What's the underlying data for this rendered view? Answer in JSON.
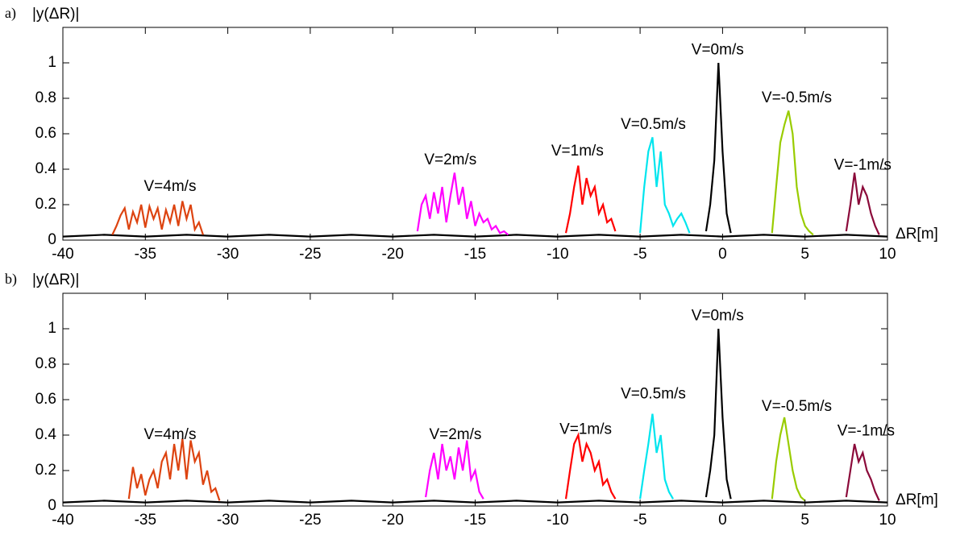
{
  "chart_data": [
    {
      "type": "line",
      "panel_label": "a)",
      "ylabel": "|y(ΔR)|",
      "xlabel": "ΔR[m]",
      "xlim": [
        -40,
        10
      ],
      "ylim": [
        0,
        1.2
      ],
      "xticks": [
        -40,
        -35,
        -30,
        -25,
        -20,
        -15,
        -10,
        -5,
        0,
        5,
        10
      ],
      "yticks": [
        0,
        0.2,
        0.4,
        0.6,
        0.8,
        1
      ],
      "series": [
        {
          "color": "#000000",
          "x": [
            -40,
            -37.5,
            -35,
            -32.5,
            -30,
            -27.5,
            -25,
            -22.5,
            -20,
            -17.5,
            -15,
            -12.5,
            -10,
            -7.5,
            -5,
            -2.5,
            0,
            2.5,
            5,
            7.5,
            10
          ],
          "values": [
            0.02,
            0.03,
            0.02,
            0.03,
            0.02,
            0.03,
            0.02,
            0.03,
            0.02,
            0.03,
            0.02,
            0.03,
            0.02,
            0.03,
            0.02,
            0.03,
            0.02,
            0.03,
            0.02,
            0.03,
            0.02
          ]
        },
        {
          "color": "#dd4411",
          "x": [
            -37,
            -36.75,
            -36.5,
            -36.25,
            -36,
            -35.75,
            -35.5,
            -35.25,
            -35,
            -34.75,
            -34.5,
            -34.25,
            -34,
            -33.75,
            -33.5,
            -33.25,
            -33,
            -32.75,
            -32.5,
            -32.25,
            -32,
            -31.75,
            -31.5
          ],
          "values": [
            0.03,
            0.08,
            0.14,
            0.18,
            0.06,
            0.16,
            0.1,
            0.2,
            0.07,
            0.19,
            0.12,
            0.18,
            0.06,
            0.17,
            0.1,
            0.2,
            0.08,
            0.22,
            0.12,
            0.2,
            0.06,
            0.1,
            0.03
          ]
        },
        {
          "color": "#ff00ff",
          "x": [
            -18.5,
            -18.25,
            -18,
            -17.75,
            -17.5,
            -17.25,
            -17,
            -16.75,
            -16.5,
            -16.25,
            -16,
            -15.75,
            -15.5,
            -15.25,
            -15,
            -14.75,
            -14.5,
            -14.25,
            -14,
            -13.75,
            -13.5,
            -13.25,
            -13
          ],
          "values": [
            0.05,
            0.2,
            0.25,
            0.12,
            0.27,
            0.15,
            0.3,
            0.1,
            0.25,
            0.38,
            0.2,
            0.3,
            0.12,
            0.22,
            0.08,
            0.15,
            0.1,
            0.12,
            0.06,
            0.08,
            0.04,
            0.05,
            0.03
          ]
        },
        {
          "color": "#ff0000",
          "x": [
            -9.5,
            -9.25,
            -9,
            -8.75,
            -8.5,
            -8.25,
            -8,
            -7.75,
            -7.5,
            -7.25,
            -7,
            -6.75,
            -6.5
          ],
          "values": [
            0.04,
            0.15,
            0.3,
            0.42,
            0.2,
            0.35,
            0.25,
            0.3,
            0.15,
            0.2,
            0.1,
            0.12,
            0.05
          ]
        },
        {
          "color": "#00e5ee",
          "x": [
            -5,
            -4.75,
            -4.5,
            -4.25,
            -4,
            -3.75,
            -3.5,
            -3.25,
            -3,
            -2.75,
            -2.5,
            -2.25,
            -2
          ],
          "values": [
            0.04,
            0.3,
            0.5,
            0.58,
            0.3,
            0.5,
            0.2,
            0.15,
            0.08,
            0.12,
            0.15,
            0.1,
            0.04
          ]
        },
        {
          "color": "#000000",
          "x": [
            -1,
            -0.75,
            -0.5,
            -0.25,
            0,
            0.25,
            0.5
          ],
          "values": [
            0.05,
            0.2,
            0.45,
            1.0,
            0.5,
            0.15,
            0.04
          ]
        },
        {
          "color": "#99cc00",
          "x": [
            3,
            3.25,
            3.5,
            3.75,
            4,
            4.25,
            4.5,
            4.75,
            5,
            5.25,
            5.5
          ],
          "values": [
            0.04,
            0.3,
            0.55,
            0.65,
            0.73,
            0.6,
            0.3,
            0.15,
            0.08,
            0.05,
            0.03
          ]
        },
        {
          "color": "#8b0a3a",
          "x": [
            7.5,
            7.75,
            8,
            8.25,
            8.5,
            8.75,
            9,
            9.25,
            9.5
          ],
          "values": [
            0.05,
            0.2,
            0.38,
            0.2,
            0.3,
            0.25,
            0.15,
            0.08,
            0.03
          ]
        }
      ],
      "annotations": [
        {
          "text": "V=4m/s",
          "x": -33.5,
          "y": 0.3
        },
        {
          "text": "V=2m/s",
          "x": -16.5,
          "y": 0.45
        },
        {
          "text": "V=1m/s",
          "x": -8.8,
          "y": 0.5
        },
        {
          "text": "V=0.5m/s",
          "x": -4.2,
          "y": 0.65
        },
        {
          "text": "V=0m/s",
          "x": -0.3,
          "y": 1.07
        },
        {
          "text": "V=-0.5m/s",
          "x": 4.5,
          "y": 0.8
        },
        {
          "text": "V=-1m/s",
          "x": 8.5,
          "y": 0.42
        }
      ]
    },
    {
      "type": "line",
      "panel_label": "b)",
      "ylabel": "|y(ΔR)|",
      "xlabel": "ΔR[m]",
      "xlim": [
        -40,
        10
      ],
      "ylim": [
        0,
        1.2
      ],
      "xticks": [
        -40,
        -35,
        -30,
        -25,
        -20,
        -15,
        -10,
        -5,
        0,
        5,
        10
      ],
      "yticks": [
        0,
        0.2,
        0.4,
        0.6,
        0.8,
        1
      ],
      "series": [
        {
          "color": "#000000",
          "x": [
            -40,
            -37.5,
            -35,
            -32.5,
            -30,
            -27.5,
            -25,
            -22.5,
            -20,
            -17.5,
            -15,
            -12.5,
            -10,
            -7.5,
            -5,
            -2.5,
            0,
            2.5,
            5,
            7.5,
            10
          ],
          "values": [
            0.02,
            0.03,
            0.02,
            0.03,
            0.02,
            0.03,
            0.02,
            0.03,
            0.02,
            0.03,
            0.02,
            0.03,
            0.02,
            0.03,
            0.02,
            0.03,
            0.02,
            0.03,
            0.02,
            0.03,
            0.02
          ]
        },
        {
          "color": "#dd4411",
          "x": [
            -36,
            -35.75,
            -35.5,
            -35.25,
            -35,
            -34.75,
            -34.5,
            -34.25,
            -34,
            -33.75,
            -33.5,
            -33.25,
            -33,
            -32.75,
            -32.5,
            -32.25,
            -32,
            -31.75,
            -31.5,
            -31.25,
            -31,
            -30.75,
            -30.5
          ],
          "values": [
            0.04,
            0.22,
            0.1,
            0.18,
            0.06,
            0.15,
            0.2,
            0.1,
            0.25,
            0.3,
            0.15,
            0.35,
            0.2,
            0.38,
            0.15,
            0.37,
            0.25,
            0.3,
            0.12,
            0.2,
            0.08,
            0.1,
            0.03
          ]
        },
        {
          "color": "#ff00ff",
          "x": [
            -18,
            -17.75,
            -17.5,
            -17.25,
            -17,
            -16.75,
            -16.5,
            -16.25,
            -16,
            -15.75,
            -15.5,
            -15.25,
            -15,
            -14.75,
            -14.5
          ],
          "values": [
            0.05,
            0.2,
            0.3,
            0.15,
            0.35,
            0.2,
            0.28,
            0.15,
            0.33,
            0.2,
            0.37,
            0.15,
            0.2,
            0.08,
            0.04
          ]
        },
        {
          "color": "#ff0000",
          "x": [
            -9.5,
            -9.25,
            -9,
            -8.75,
            -8.5,
            -8.25,
            -8,
            -7.75,
            -7.5,
            -7.25,
            -7,
            -6.75,
            -6.5
          ],
          "values": [
            0.04,
            0.2,
            0.35,
            0.4,
            0.25,
            0.35,
            0.3,
            0.2,
            0.25,
            0.12,
            0.15,
            0.08,
            0.04
          ]
        },
        {
          "color": "#00e5ee",
          "x": [
            -5,
            -4.75,
            -4.5,
            -4.25,
            -4,
            -3.75,
            -3.5,
            -3.25,
            -3
          ],
          "values": [
            0.04,
            0.2,
            0.35,
            0.52,
            0.3,
            0.4,
            0.15,
            0.08,
            0.04
          ]
        },
        {
          "color": "#000000",
          "x": [
            -1,
            -0.75,
            -0.5,
            -0.25,
            0,
            0.25,
            0.5
          ],
          "values": [
            0.05,
            0.2,
            0.4,
            1.0,
            0.5,
            0.15,
            0.04
          ]
        },
        {
          "color": "#99cc00",
          "x": [
            3,
            3.25,
            3.5,
            3.75,
            4,
            4.25,
            4.5,
            4.75,
            5
          ],
          "values": [
            0.04,
            0.25,
            0.4,
            0.5,
            0.35,
            0.2,
            0.1,
            0.05,
            0.03
          ]
        },
        {
          "color": "#8b0a3a",
          "x": [
            7.5,
            7.75,
            8,
            8.25,
            8.5,
            8.75,
            9,
            9.25,
            9.5
          ],
          "values": [
            0.05,
            0.2,
            0.35,
            0.25,
            0.3,
            0.2,
            0.15,
            0.08,
            0.03
          ]
        }
      ],
      "annotations": [
        {
          "text": "V=4m/s",
          "x": -33.5,
          "y": 0.4
        },
        {
          "text": "V=2m/s",
          "x": -16.2,
          "y": 0.4
        },
        {
          "text": "V=1m/s",
          "x": -8.3,
          "y": 0.43
        },
        {
          "text": "V=0.5m/s",
          "x": -4.2,
          "y": 0.63
        },
        {
          "text": "V=0m/s",
          "x": -0.3,
          "y": 1.07
        },
        {
          "text": "V=-0.5m/s",
          "x": 4.5,
          "y": 0.56
        },
        {
          "text": "V=-1m/s",
          "x": 8.7,
          "y": 0.42
        }
      ]
    }
  ]
}
